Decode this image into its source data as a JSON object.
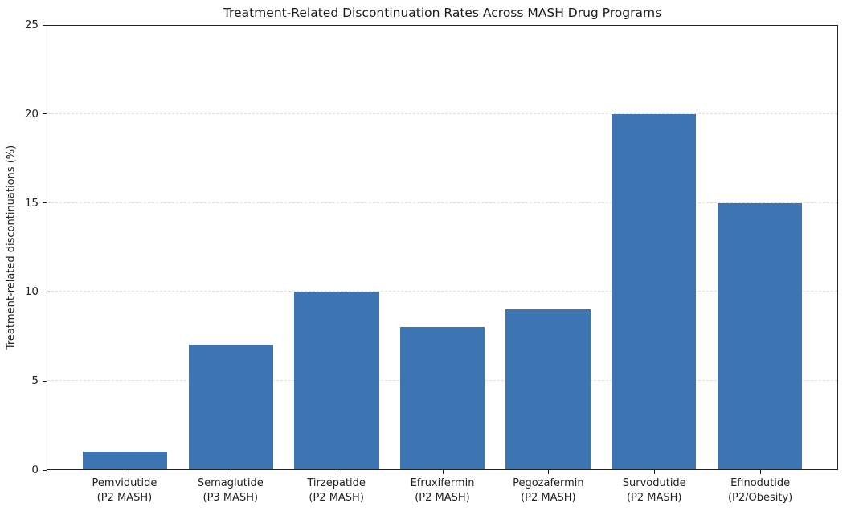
{
  "chart_data": {
    "type": "bar",
    "title": "Treatment-Related Discontinuation Rates Across MASH Drug Programs",
    "xlabel": "",
    "ylabel": "Treatment-related discontinuations (%)",
    "categories": [
      "Pemvidutide\n(P2 MASH)",
      "Semaglutide\n(P3 MASH)",
      "Tirzepatide\n(P2 MASH)",
      "Efruxifermin\n(P2 MASH)",
      "Pegozafermin\n(P2 MASH)",
      "Survodutide\n(P2 MASH)",
      "Efinodutide\n(P2/Obesity)"
    ],
    "values": [
      1,
      7,
      10,
      8,
      9,
      20,
      15
    ],
    "ylim": [
      0,
      25
    ],
    "yticks": [
      0,
      5,
      10,
      15,
      20,
      25
    ],
    "grid": {
      "axis": "y",
      "style": "dashed"
    },
    "legend": "none",
    "colors": {
      "bar": "#3d74b2",
      "grid": "#dedede",
      "spine": "#222222",
      "text": "#222222",
      "background": "#ffffff"
    }
  }
}
